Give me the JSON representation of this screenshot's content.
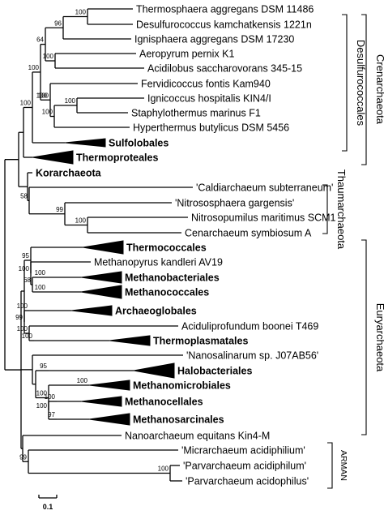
{
  "taxa": [
    {
      "label": "Thermosphaera aggregans DSM 11486",
      "bold": false
    },
    {
      "label": "Desulfurococcus kamchatkensis 1221n",
      "bold": false
    },
    {
      "label": "Ignisphaera aggregans DSM 17230",
      "bold": false
    },
    {
      "label": "Aeropyrum pernix K1",
      "bold": false
    },
    {
      "label": "Acidilobus saccharovorans 345-15",
      "bold": false
    },
    {
      "label": "Fervidicoccus fontis Kam940",
      "bold": false
    },
    {
      "label": "Ignicoccus hospitalis KIN4/I",
      "bold": false
    },
    {
      "label": "Staphylothermus marinus F1",
      "bold": false
    },
    {
      "label": "Hyperthermus butylicus DSM 5456",
      "bold": false
    },
    {
      "label": "Sulfolobales",
      "bold": true
    },
    {
      "label": "Thermoproteales",
      "bold": true
    },
    {
      "label": "Korarchaeota",
      "bold": true
    },
    {
      "label": "'Caldiarchaeum subterraneum'",
      "bold": false
    },
    {
      "label": "'Nitrososphaera gargensis'",
      "bold": false
    },
    {
      "label": "Nitrosopumilus maritimus SCM1",
      "bold": false
    },
    {
      "label": "Cenarchaeum symbiosum A",
      "bold": false
    },
    {
      "label": "Thermococcales",
      "bold": true
    },
    {
      "label": "Methanopyrus kandleri AV19",
      "bold": false
    },
    {
      "label": "Methanobacteriales",
      "bold": true
    },
    {
      "label": "Methanococcales",
      "bold": true
    },
    {
      "label": "Archaeoglobales",
      "bold": true
    },
    {
      "label": "Aciduliprofundum boonei T469",
      "bold": false
    },
    {
      "label": "Thermoplasmatales",
      "bold": true
    },
    {
      "label": "'Nanosalinarum sp. J07AB56'",
      "bold": false
    },
    {
      "label": "Halobacteriales",
      "bold": true
    },
    {
      "label": "Methanomicrobiales",
      "bold": true
    },
    {
      "label": "Methanocellales",
      "bold": true
    },
    {
      "label": "Methanosarcinales",
      "bold": true
    },
    {
      "label": "Nanoarchaeum equitans Kin4-M",
      "bold": false
    },
    {
      "label": "'Micrarchaeum acidiphilium'",
      "bold": false
    },
    {
      "label": "'Parvarchaeum acidiphilum'",
      "bold": false
    },
    {
      "label": "'Parvarchaeum acidophilus'",
      "bold": false
    }
  ],
  "bootstrap_values": [
    "100",
    "96",
    "100",
    "64",
    "100",
    "100",
    "100",
    "100",
    "100",
    "100",
    "58",
    "99",
    "100",
    "95",
    "100",
    "100",
    "100",
    "68",
    "99",
    "100",
    "100",
    "100",
    "95",
    "100",
    "100",
    "97",
    "100",
    "100",
    "99",
    "100"
  ],
  "groups": {
    "crenarchaeota": "Crenarchaeota",
    "desulfurococcales": "Desulfurococcales",
    "thaumarchaeota": "Thaumarchaeota",
    "euryarchaeota": "Euryarchaeota",
    "arman": "ARMAN"
  },
  "scale_bar": {
    "label": "0.1"
  }
}
